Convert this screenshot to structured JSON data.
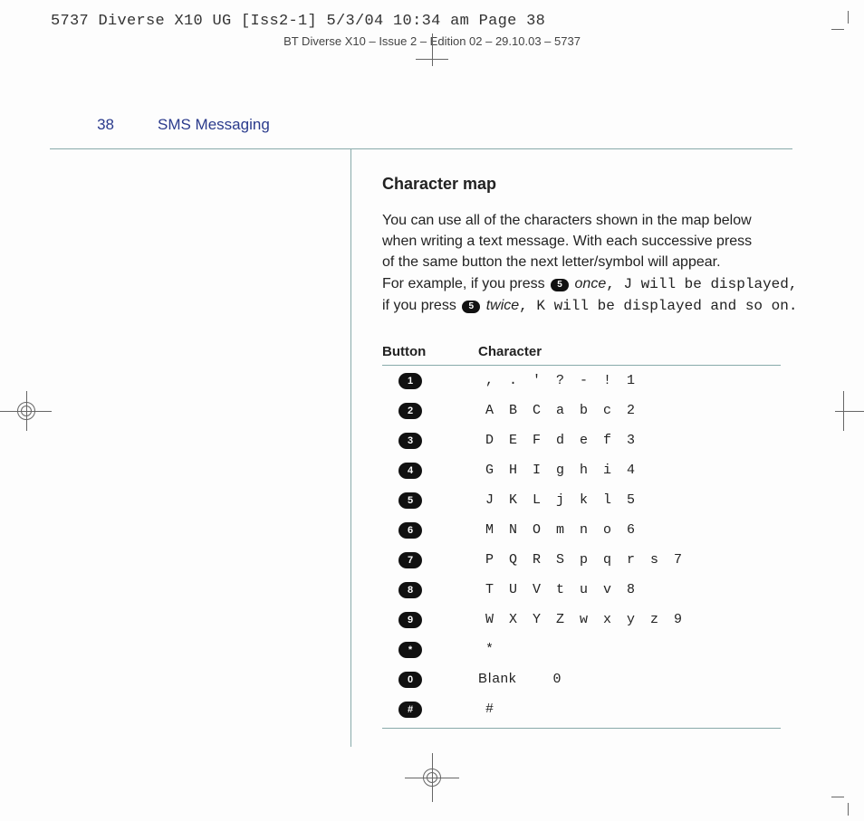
{
  "imposition_header": "5737 Diverse X10 UG [Iss2-1]  5/3/04  10:34 am  Page 38",
  "running_header": "BT Diverse X10 – Issue 2 – Edition 02 – 29.10.03 – 5737",
  "page_number": "38",
  "section_title": "SMS Messaging",
  "subhead": "Character map",
  "body": {
    "line1": "You can use all of the characters shown in the map below",
    "line2": "when writing a text message. With each successive press",
    "line3": "of the same button the next letter/symbol will appear.",
    "line4a": "For example, if you press ",
    "line4b": " once",
    "line4c": ", J will be displayed,",
    "line5a": "if you press ",
    "line5b": " twice",
    "line5c": ", K will be displayed and so on.",
    "example_key": "5"
  },
  "table": {
    "col_a": "Button",
    "col_b": "Character",
    "rows": [
      {
        "button": "1",
        "chars": [
          ",",
          ".",
          "'",
          "?",
          "-",
          "!",
          "1"
        ]
      },
      {
        "button": "2",
        "chars": [
          "A",
          "B",
          "C",
          "a",
          "b",
          "c",
          "2"
        ]
      },
      {
        "button": "3",
        "chars": [
          "D",
          "E",
          "F",
          "d",
          "e",
          "f",
          "3"
        ]
      },
      {
        "button": "4",
        "chars": [
          "G",
          "H",
          "I",
          "g",
          "h",
          "i",
          "4"
        ]
      },
      {
        "button": "5",
        "chars": [
          "J",
          "K",
          "L",
          "j",
          "k",
          "l",
          "5"
        ]
      },
      {
        "button": "6",
        "chars": [
          "M",
          "N",
          "O",
          "m",
          "n",
          "o",
          "6"
        ]
      },
      {
        "button": "7",
        "chars": [
          "P",
          "Q",
          "R",
          "S",
          "p",
          "q",
          "r",
          "s",
          "7"
        ]
      },
      {
        "button": "8",
        "chars": [
          "T",
          "U",
          "V",
          "t",
          "u",
          "v",
          "8"
        ]
      },
      {
        "button": "9",
        "chars": [
          "W",
          "X",
          "Y",
          "Z",
          "w",
          "x",
          "y",
          "z",
          "9"
        ]
      },
      {
        "button": "*",
        "chars": [
          "*"
        ]
      },
      {
        "button": "0",
        "chars": [
          "Blank",
          "0"
        ],
        "blank_row": true
      },
      {
        "button": "#",
        "chars": [
          "#"
        ]
      }
    ]
  },
  "colors": {
    "accent": "#2a3a8c",
    "rule": "#8aa",
    "badge_bg": "#111",
    "badge_fg": "#ffffff",
    "text": "#222222",
    "page_bg": "#fdfdfd"
  }
}
